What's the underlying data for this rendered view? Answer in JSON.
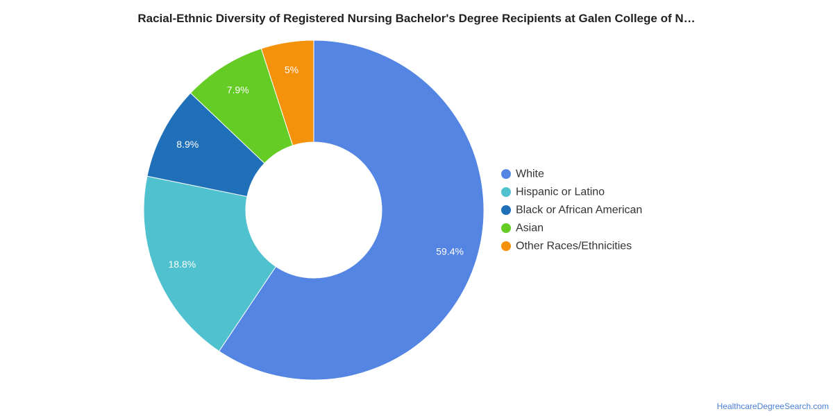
{
  "chart_data": {
    "type": "pie",
    "donut": true,
    "title": "Racial-Ethnic Diversity of Registered Nursing Bachelor's Degree Recipients at Galen College of N…",
    "categories": [
      "White",
      "Hispanic or Latino",
      "Black or African American",
      "Asian",
      "Other Races/Ethnicities"
    ],
    "values": [
      59.4,
      18.8,
      8.9,
      7.9,
      5
    ],
    "value_labels": [
      "59.4%",
      "18.8%",
      "8.9%",
      "7.9%",
      "5%"
    ],
    "colors": [
      "#5585e3",
      "#4fc1cf",
      "#1f70b8",
      "#65cc25",
      "#f5920c"
    ],
    "legend_position": "right"
  },
  "watermark": "HealthcareDegreeSearch.com"
}
